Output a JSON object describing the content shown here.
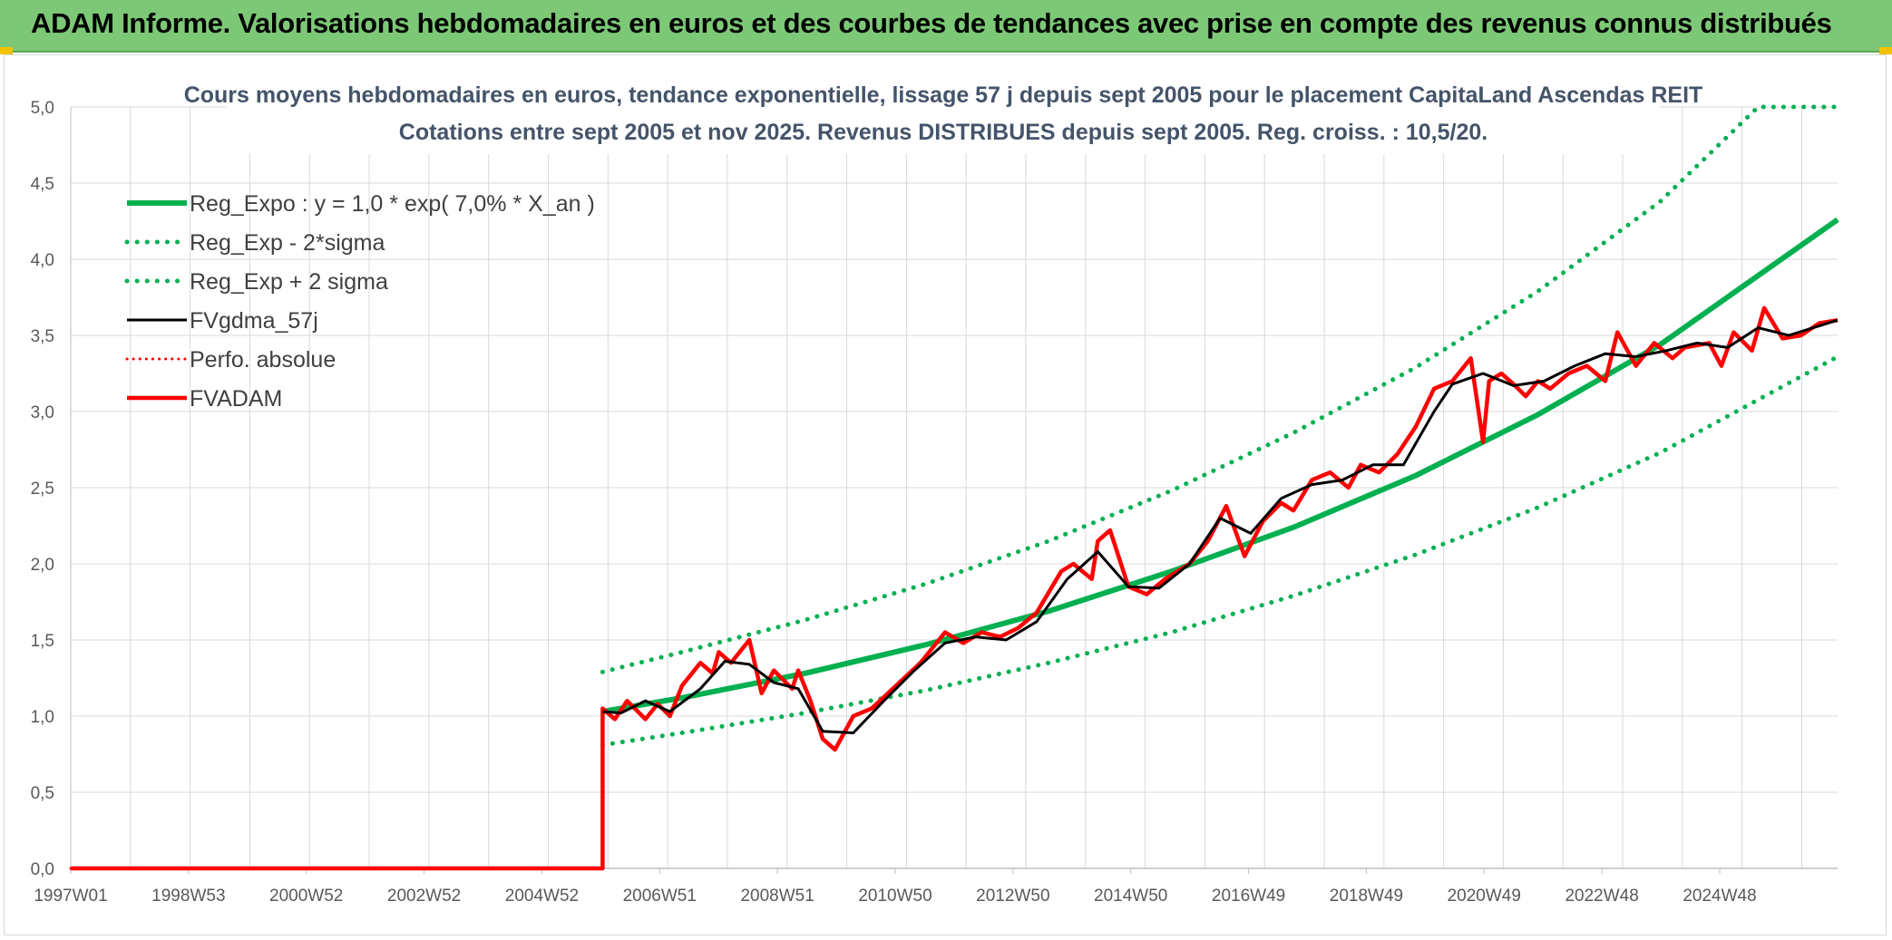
{
  "banner": {
    "title": "ADAM Informe. Valorisations hebdomadaires en euros et des courbes de tendances avec prise en compte des revenus connus distribués"
  },
  "colors": {
    "banner_bg": "#7cc876",
    "regression": "#00b050",
    "smoothed": "#000000",
    "adam": "#ff0000",
    "title_text": "#44546a"
  },
  "chart_data": {
    "type": "line",
    "title": "Cours moyens hebdomadaires en euros, tendance exponentielle, lissage 57 j depuis sept 2005 pour le placement CapitaLand Ascendas REIT",
    "subtitle": "Cotations entre sept 2005 et nov 2025. Revenus DISTRIBUES depuis sept 2005. Reg. croiss. : 10,5/20.",
    "xlabel": "",
    "ylabel": "",
    "x_ticks": [
      "1997W01",
      "1998W53",
      "2000W52",
      "2002W52",
      "2004W52",
      "2006W51",
      "2008W51",
      "2010W50",
      "2012W50",
      "2014W50",
      "2016W49",
      "2018W49",
      "2020W49",
      "2022W48",
      "2024W48"
    ],
    "y_ticks": [
      "0,0",
      "0,5",
      "1,0",
      "1,5",
      "2,0",
      "2,5",
      "3,0",
      "3,5",
      "4,0",
      "4,5",
      "5,0"
    ],
    "xlim": [
      1997.0,
      2025.9
    ],
    "ylim": [
      0,
      5
    ],
    "grid": true,
    "legend_position": "top-left",
    "series": [
      {
        "name": "Reg_Expo : y = 1,0 * exp( 7,0% *  X_an )",
        "style": "solid-green",
        "x": [
          2005.7,
          2007,
          2009,
          2011,
          2013,
          2015,
          2017,
          2019,
          2021,
          2023,
          2025.9
        ],
        "y": [
          1.03,
          1.12,
          1.28,
          1.47,
          1.69,
          1.95,
          2.24,
          2.58,
          2.98,
          3.44,
          4.26
        ]
      },
      {
        "name": "Reg_Exp - 2*sigma",
        "style": "dotted-green",
        "x": [
          2005.7,
          2007,
          2009,
          2011,
          2013,
          2015,
          2017,
          2019,
          2021,
          2023,
          2025.9
        ],
        "y": [
          0.81,
          0.89,
          1.02,
          1.17,
          1.35,
          1.55,
          1.79,
          2.06,
          2.37,
          2.73,
          3.36
        ]
      },
      {
        "name": "Reg_Exp + 2 sigma",
        "style": "dotted-green",
        "x": [
          2005.7,
          2007,
          2009,
          2011,
          2013,
          2015,
          2017,
          2019,
          2021,
          2023,
          2024.6,
          2025.9
        ],
        "y": [
          1.29,
          1.42,
          1.63,
          1.87,
          2.15,
          2.48,
          2.86,
          3.29,
          3.79,
          4.38,
          5.0,
          5.0
        ]
      },
      {
        "name": "FVgdma_57j",
        "style": "solid-black",
        "x": [
          2005.7,
          2006.0,
          2006.4,
          2006.8,
          2007.3,
          2007.7,
          2008.1,
          2008.5,
          2008.9,
          2009.3,
          2009.8,
          2010.3,
          2010.8,
          2011.3,
          2011.8,
          2012.3,
          2012.8,
          2013.3,
          2013.8,
          2014.3,
          2014.8,
          2015.3,
          2015.8,
          2016.3,
          2016.8,
          2017.3,
          2017.8,
          2018.3,
          2018.8,
          2019.3,
          2019.6,
          2020.1,
          2020.6,
          2021.1,
          2021.6,
          2022.1,
          2022.6,
          2023.1,
          2023.6,
          2024.1,
          2024.6,
          2025.1,
          2025.9
        ],
        "y": [
          1.03,
          1.02,
          1.1,
          1.03,
          1.18,
          1.36,
          1.34,
          1.22,
          1.18,
          0.9,
          0.89,
          1.1,
          1.3,
          1.48,
          1.52,
          1.5,
          1.62,
          1.9,
          2.08,
          1.85,
          1.84,
          2.0,
          2.3,
          2.2,
          2.43,
          2.52,
          2.55,
          2.65,
          2.65,
          3.0,
          3.18,
          3.25,
          3.17,
          3.2,
          3.3,
          3.38,
          3.36,
          3.4,
          3.45,
          3.42,
          3.55,
          3.5,
          3.6
        ]
      },
      {
        "name": "Perfo. absolue",
        "style": "dotted-red",
        "x": [
          1997.0,
          2005.7,
          2005.7
        ],
        "y": [
          0.0,
          0.0,
          1.05
        ]
      },
      {
        "name": "FVADAM",
        "style": "solid-red",
        "x": [
          1997.0,
          2005.7,
          2005.7,
          2005.9,
          2006.1,
          2006.4,
          2006.6,
          2006.8,
          2007.0,
          2007.3,
          2007.5,
          2007.6,
          2007.8,
          2008.1,
          2008.3,
          2008.5,
          2008.8,
          2008.9,
          2009.1,
          2009.3,
          2009.5,
          2009.8,
          2010.1,
          2010.5,
          2010.9,
          2011.3,
          2011.6,
          2011.9,
          2012.2,
          2012.5,
          2012.8,
          2013.2,
          2013.4,
          2013.7,
          2013.8,
          2014.0,
          2014.3,
          2014.6,
          2014.9,
          2015.3,
          2015.6,
          2015.9,
          2016.2,
          2016.5,
          2016.8,
          2017.0,
          2017.3,
          2017.6,
          2017.9,
          2018.1,
          2018.4,
          2018.7,
          2019.0,
          2019.3,
          2019.6,
          2019.9,
          2020.1,
          2020.2,
          2020.4,
          2020.6,
          2020.8,
          2021.0,
          2021.2,
          2021.5,
          2021.8,
          2022.1,
          2022.3,
          2022.6,
          2022.9,
          2023.2,
          2023.4,
          2023.8,
          2024.0,
          2024.2,
          2024.5,
          2024.7,
          2025.0,
          2025.3,
          2025.6,
          2025.9
        ],
        "y": [
          0.0,
          0.0,
          1.05,
          0.98,
          1.1,
          0.98,
          1.08,
          1.0,
          1.2,
          1.35,
          1.28,
          1.42,
          1.35,
          1.5,
          1.15,
          1.3,
          1.18,
          1.3,
          1.1,
          0.85,
          0.78,
          1.0,
          1.05,
          1.2,
          1.35,
          1.55,
          1.48,
          1.55,
          1.52,
          1.58,
          1.68,
          1.95,
          2.0,
          1.9,
          2.15,
          2.22,
          1.85,
          1.8,
          1.9,
          2.0,
          2.15,
          2.38,
          2.05,
          2.28,
          2.4,
          2.35,
          2.55,
          2.6,
          2.5,
          2.65,
          2.6,
          2.72,
          2.9,
          3.15,
          3.2,
          3.35,
          2.8,
          3.2,
          3.25,
          3.18,
          3.1,
          3.2,
          3.15,
          3.25,
          3.3,
          3.2,
          3.52,
          3.3,
          3.45,
          3.35,
          3.42,
          3.45,
          3.3,
          3.52,
          3.4,
          3.68,
          3.48,
          3.5,
          3.58,
          3.6
        ]
      }
    ]
  }
}
